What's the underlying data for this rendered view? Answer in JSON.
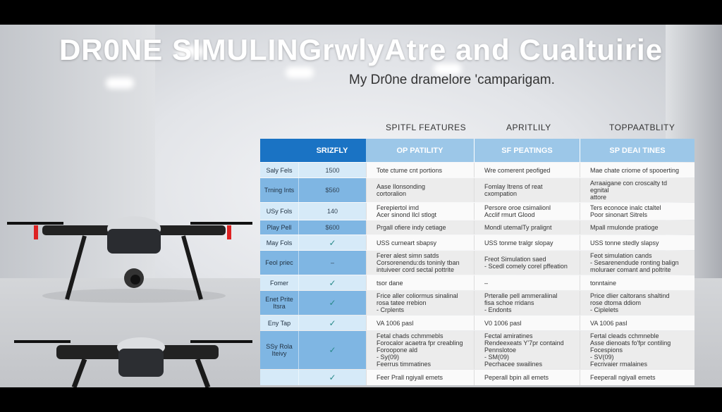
{
  "title": "DR0NE SIMULINGrwlyAtre and Cualtuirie",
  "subtitle": "My Dr0ne dramelore 'camparigam.",
  "column_groups": [
    "SPITFL FEATURES",
    "APRITLILY",
    "TOPPAATBLITY"
  ],
  "header": [
    "",
    "SRIZFLY",
    "OP PATILITY",
    "SF PEATINGS",
    "SP DEAI TINES"
  ],
  "colors": {
    "header_dark": "#1a73c4",
    "header_light": "#9cc7e8",
    "label_light": "#d6eaf8",
    "label_dark": "#7fb6e3"
  },
  "rows": [
    {
      "label": "Saly Fels",
      "value": "1500",
      "cells": [
        "Tote ctume cnt portions",
        "Wre comerent peofiged",
        "Mae chate criome of spooerting"
      ]
    },
    {
      "label": "Trning Ints",
      "value": "$560",
      "cells": [
        "Aase Ilonsonding\ncortoralion",
        "Fomlay Itrens of reat\ncxompation",
        "Arraaigane con croscalty td egnital\nattore"
      ]
    },
    {
      "label": "USy Fols",
      "value": "140",
      "cells": [
        "Ferepiertol imd\nAcer sinond Ilcl stlogt",
        "Persore oroe csimalionl\nAcclif rmurt Glood",
        "Ters econoce inalc ctaltel\nPoor sinonart Sitrels"
      ]
    },
    {
      "label": "Play Pell",
      "value": "$600",
      "cells": [
        "Prgall ofiere indy cetiage",
        "Mondl utemalTy pralignt",
        "Mpall rmulonde pratioge"
      ]
    },
    {
      "label": "May Fols",
      "value": "✓",
      "cells": [
        "USS curneart sbapsy",
        "USS tonme tralgr slopay",
        "USS tonne stedly slapsy"
      ]
    },
    {
      "label": "Feol priec",
      "value": "–",
      "cells": [
        "Ferer alest simn satds\nCorsorenendu:ds toninly tban\nintuiveer cord sectal pottrite",
        "Freot Simulation saed\n- Scedl comely corel pffeation",
        "Feot simulation cands\n- Sesarenendude ronting balign\nmoluraer comant and poltrite"
      ]
    },
    {
      "label": "Fomer",
      "value": "✓",
      "cells": [
        "tsor dane",
        "–",
        "tonntaine"
      ]
    },
    {
      "label": "Enet Prite Itsra",
      "value": "✓",
      "cells": [
        "Frice aller coliormus sinalinal\nrosa tatee rrebion\n- Crplents",
        "Prteralle pell ammeraliinal\nfisa schoe rridans\n- Endonts",
        "Price dlier caltorans shaltind\nrose dtoma ddiom\n- Ciplelets"
      ]
    },
    {
      "label": "Eny Tap",
      "value": "✓",
      "cells": [
        "VA 1006 pasl",
        "V0 1006 pasl",
        "VA 1006 pasl"
      ]
    },
    {
      "label": "SSy Rola Iteivy",
      "value": "✓",
      "cells": [
        "Fetal chads cchmmebls\nForocalor acaetra fpr creabling\nForoopone ald\n- Sy(09)\nFeerrus timmatines",
        "Fectal amiratines\nRendeexeats Y'7pr containd\nPennslotoe\n- SM(09)\nPecrhacee swailines",
        "Fertal cleads cchmneble\nAsse dienoats fo'fpr contiling\nFocespions\n- SV(09)\nFecrivaier rmalaines"
      ]
    },
    {
      "label": "",
      "value": "✓",
      "cells": [
        "Feer Prall ngiyall emets",
        "Peperall bpin all emets",
        "Feeperall ngiyall emets"
      ]
    }
  ]
}
